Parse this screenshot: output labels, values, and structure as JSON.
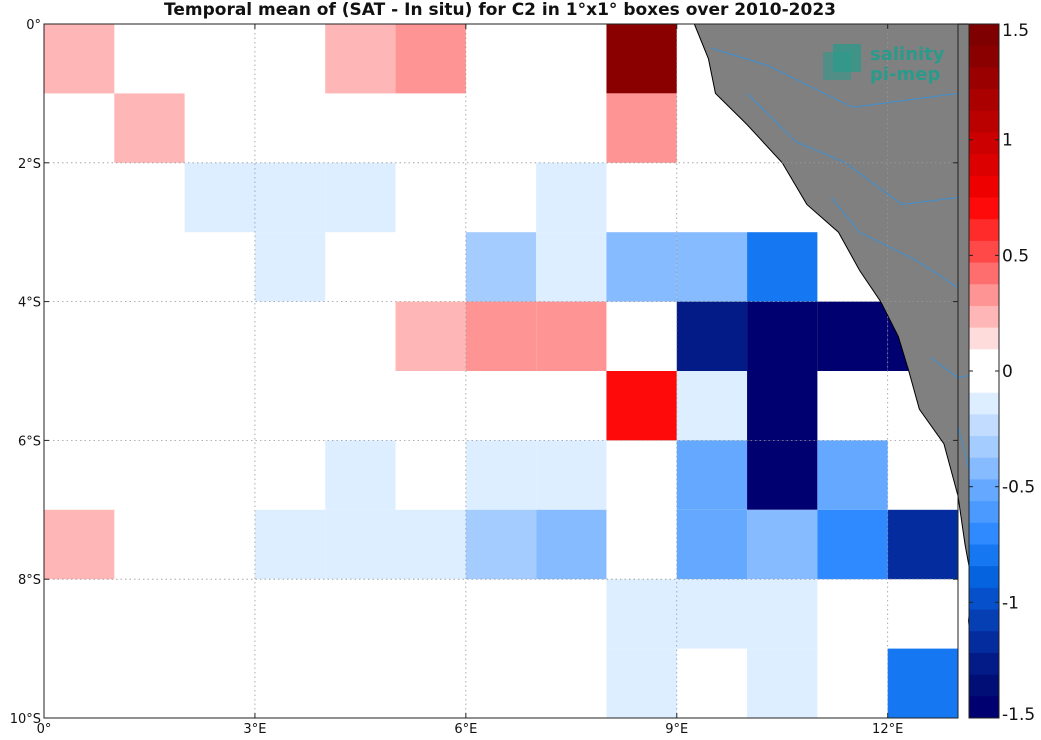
{
  "title": "Temporal mean of (SAT - In situ) for C2 in 1°x1° boxes over 2010-2023",
  "map": {
    "lon_range": [
      0,
      13
    ],
    "lat_range": [
      -10,
      0
    ],
    "x_ticks": [
      {
        "value": 0,
        "label": "0°"
      },
      {
        "value": 3,
        "label": "3°E"
      },
      {
        "value": 6,
        "label": "6°E"
      },
      {
        "value": 9,
        "label": "9°E"
      },
      {
        "value": 12,
        "label": "12°E"
      }
    ],
    "y_ticks": [
      {
        "value": 0,
        "label": "0°"
      },
      {
        "value": -2,
        "label": "2°S"
      },
      {
        "value": -4,
        "label": "4°S"
      },
      {
        "value": -6,
        "label": "6°S"
      },
      {
        "value": -8,
        "label": "8°S"
      },
      {
        "value": -10,
        "label": "10°S"
      }
    ],
    "grid": true,
    "land_color": "#808080",
    "river_color": "#3d8fd1",
    "land_outline": [
      [
        9.25,
        0
      ],
      [
        9.45,
        -0.5
      ],
      [
        9.55,
        -1
      ],
      [
        10,
        -1.45
      ],
      [
        10.5,
        -2
      ],
      [
        10.85,
        -2.6
      ],
      [
        11.3,
        -3
      ],
      [
        11.6,
        -3.55
      ],
      [
        11.9,
        -4
      ],
      [
        12.15,
        -4.5
      ],
      [
        12.3,
        -5
      ],
      [
        12.45,
        -5.55
      ],
      [
        12.8,
        -6.05
      ],
      [
        13.0,
        -6.8
      ],
      [
        13.1,
        -7.5
      ],
      [
        13.2,
        -8.05
      ],
      [
        13.15,
        -8.6
      ],
      [
        13.2,
        -9.1
      ],
      [
        13.35,
        -9.6
      ],
      [
        13.5,
        -10
      ],
      [
        13.5,
        0
      ]
    ],
    "rivers": [
      [
        [
          9.5,
          -0.35
        ],
        [
          10.3,
          -0.6
        ],
        [
          11.5,
          -1.2
        ],
        [
          13.0,
          -1.0
        ]
      ],
      [
        [
          10.0,
          -1.0
        ],
        [
          10.7,
          -1.7
        ],
        [
          11.4,
          -2.0
        ],
        [
          12.2,
          -2.6
        ],
        [
          13.0,
          -2.5
        ]
      ],
      [
        [
          11.2,
          -2.5
        ],
        [
          11.6,
          -3.0
        ],
        [
          12.4,
          -3.4
        ],
        [
          13.0,
          -3.8
        ]
      ],
      [
        [
          12.6,
          -4.8
        ],
        [
          13.0,
          -5.1
        ],
        [
          13.4,
          -5.0
        ]
      ],
      [
        [
          13.0,
          -5.8
        ],
        [
          13.2,
          -6.6
        ]
      ]
    ]
  },
  "colorbar": {
    "vmin": -1.5,
    "vmax": 1.5,
    "ticks": [
      {
        "value": 1.5,
        "label": "1.5"
      },
      {
        "value": 1.0,
        "label": "1"
      },
      {
        "value": 0.5,
        "label": "0.5"
      },
      {
        "value": 0.0,
        "label": "0"
      },
      {
        "value": -0.5,
        "label": "-0.5"
      },
      {
        "value": -1.0,
        "label": "-1"
      },
      {
        "value": -1.5,
        "label": "-1.5"
      }
    ],
    "colors_top_to_bottom": [
      "#7f0000",
      "#8a0000",
      "#9a0000",
      "#aa0000",
      "#bb0000",
      "#cc0000",
      "#dd0000",
      "#ee0000",
      "#ff0a0a",
      "#ff2a2a",
      "#ff4848",
      "#ff6e6e",
      "#ff9494",
      "#ffb6b6",
      "#ffdcdc",
      "#ffffff",
      "#ffffff",
      "#dceeff",
      "#c2dcff",
      "#a4ccff",
      "#86bbff",
      "#64a9ff",
      "#4a9aff",
      "#2f8aff",
      "#1577f2",
      "#0563e0",
      "#0650cc",
      "#063eb4",
      "#052c9e",
      "#021b87",
      "#000e76",
      "#000070"
    ]
  },
  "boxes": [
    {
      "lon": 0,
      "lat": 0,
      "value": 0.2
    },
    {
      "lon": 4,
      "lat": 0,
      "value": 0.2
    },
    {
      "lon": 5,
      "lat": 0,
      "value": 0.35
    },
    {
      "lon": 8,
      "lat": 0,
      "value": 1.35
    },
    {
      "lon": 1,
      "lat": -1,
      "value": 0.2
    },
    {
      "lon": 8,
      "lat": -1,
      "value": 0.35
    },
    {
      "lon": 2,
      "lat": -2,
      "value": -0.15
    },
    {
      "lon": 3,
      "lat": -2,
      "value": -0.15
    },
    {
      "lon": 4,
      "lat": -2,
      "value": -0.15
    },
    {
      "lon": 7,
      "lat": -2,
      "value": -0.15
    },
    {
      "lon": 3,
      "lat": -3,
      "value": -0.15
    },
    {
      "lon": 6,
      "lat": -3,
      "value": -0.3
    },
    {
      "lon": 7,
      "lat": -3,
      "value": -0.15
    },
    {
      "lon": 8,
      "lat": -3,
      "value": -0.4
    },
    {
      "lon": 9,
      "lat": -3,
      "value": -0.4
    },
    {
      "lon": 10,
      "lat": -3,
      "value": -0.75
    },
    {
      "lon": 5,
      "lat": -4,
      "value": 0.2
    },
    {
      "lon": 6,
      "lat": -4,
      "value": 0.35
    },
    {
      "lon": 7,
      "lat": -4,
      "value": 0.35
    },
    {
      "lon": 9,
      "lat": -4,
      "value": -1.3
    },
    {
      "lon": 10,
      "lat": -4,
      "value": -1.5
    },
    {
      "lon": 11,
      "lat": -4,
      "value": -1.5
    },
    {
      "lon": 12,
      "lat": -4,
      "value": -1.5
    },
    {
      "lon": 8,
      "lat": -5,
      "value": 0.75
    },
    {
      "lon": 9,
      "lat": -5,
      "value": -0.15
    },
    {
      "lon": 10,
      "lat": -5,
      "value": -1.5
    },
    {
      "lon": 4,
      "lat": -6,
      "value": -0.15
    },
    {
      "lon": 6,
      "lat": -6,
      "value": -0.15
    },
    {
      "lon": 7,
      "lat": -6,
      "value": -0.15
    },
    {
      "lon": 9,
      "lat": -6,
      "value": -0.55
    },
    {
      "lon": 10,
      "lat": -6,
      "value": -1.5
    },
    {
      "lon": 11,
      "lat": -6,
      "value": -0.55
    },
    {
      "lon": 0,
      "lat": -7,
      "value": 0.2
    },
    {
      "lon": 3,
      "lat": -7,
      "value": -0.15
    },
    {
      "lon": 4,
      "lat": -7,
      "value": -0.15
    },
    {
      "lon": 5,
      "lat": -7,
      "value": -0.15
    },
    {
      "lon": 6,
      "lat": -7,
      "value": -0.3
    },
    {
      "lon": 7,
      "lat": -7,
      "value": -0.4
    },
    {
      "lon": 9,
      "lat": -7,
      "value": -0.55
    },
    {
      "lon": 10,
      "lat": -7,
      "value": -0.45
    },
    {
      "lon": 11,
      "lat": -7,
      "value": -0.7
    },
    {
      "lon": 12,
      "lat": -7,
      "value": -1.15
    },
    {
      "lon": 8,
      "lat": -8,
      "value": -0.15
    },
    {
      "lon": 9,
      "lat": -8,
      "value": -0.15
    },
    {
      "lon": 10,
      "lat": -8,
      "value": -0.15
    },
    {
      "lon": 8,
      "lat": -9,
      "value": -0.15
    },
    {
      "lon": 10,
      "lat": -9,
      "value": -0.15
    },
    {
      "lon": 12,
      "lat": -9,
      "value": -0.75
    }
  ],
  "logo": {
    "line1": "salinity",
    "line2": "pi-mep",
    "color": "#2a9a8a"
  }
}
